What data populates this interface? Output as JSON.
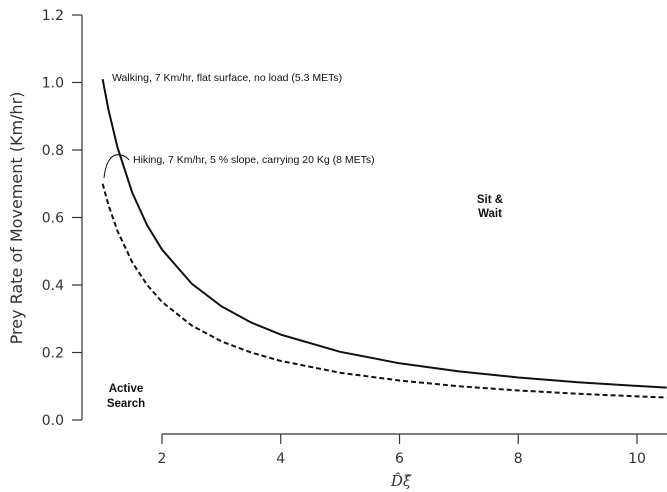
{
  "chart_data": {
    "type": "line",
    "ylabel": "Prey Rate of Movement (Km/hr)",
    "xlabel": "D̂ξ̂",
    "xlim": [
      0.25,
      10.5
    ],
    "ylim": [
      0.0,
      1.2
    ],
    "xticks": [
      "2",
      "4",
      "6",
      "8",
      "10"
    ],
    "yticks": [
      "0.0",
      "0.2",
      "0.4",
      "0.6",
      "0.8",
      "1.0",
      "1.2"
    ],
    "grid": false,
    "series": [
      {
        "name": "Walking, 7 Km/hr, flat surface, no load (5.3 METs)",
        "style": "solid",
        "color": "#111111",
        "x": [
          1.0,
          1.1,
          1.25,
          1.5,
          1.75,
          2.0,
          2.5,
          3.0,
          3.5,
          4.0,
          5.0,
          6.0,
          7.0,
          8.0,
          9.0,
          10.0,
          10.5
        ],
        "y": [
          1.01,
          0.918,
          0.808,
          0.673,
          0.577,
          0.505,
          0.404,
          0.337,
          0.289,
          0.253,
          0.202,
          0.168,
          0.144,
          0.126,
          0.112,
          0.101,
          0.096
        ]
      },
      {
        "name": "Hiking, 7 Km/hr, 5 % slope, carrying 20 Kg (8 METs)",
        "style": "dashed",
        "color": "#111111",
        "x": [
          1.0,
          1.1,
          1.25,
          1.5,
          1.75,
          2.0,
          2.5,
          3.0,
          3.5,
          4.0,
          5.0,
          6.0,
          7.0,
          8.0,
          9.0,
          10.0,
          10.5
        ],
        "y": [
          0.7,
          0.636,
          0.56,
          0.467,
          0.4,
          0.35,
          0.28,
          0.233,
          0.2,
          0.175,
          0.14,
          0.117,
          0.1,
          0.0875,
          0.0778,
          0.07,
          0.0667
        ]
      }
    ],
    "annotations": {
      "walking": "Walking, 7 Km/hr, flat surface, no load (5.3 METs)",
      "hiking": "Hiking, 7 Km/hr, 5 % slope, carrying 20 Kg (8 METs)",
      "sit_wait_line1": "Sit &",
      "sit_wait_line2": "Wait",
      "active_line1": "Active",
      "active_line2": "Search"
    }
  }
}
